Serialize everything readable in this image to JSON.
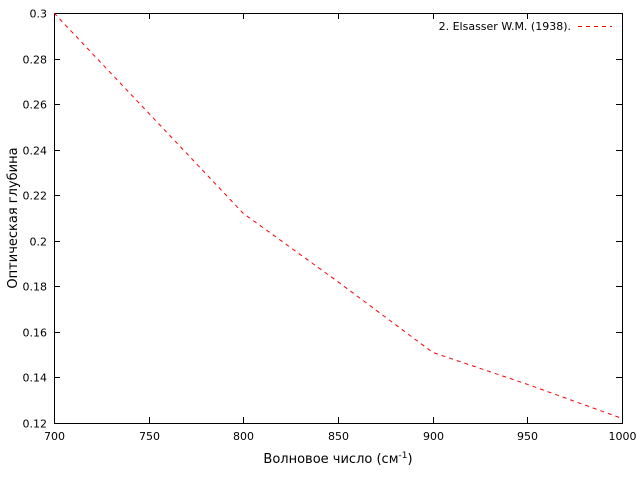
{
  "chart_data": {
    "type": "line",
    "xlabel": "Волновое число (см",
    "xlabel_sup": "-1",
    "xlabel_end": ")",
    "ylabel": "Оптическая глубина",
    "xlim": [
      700,
      1000
    ],
    "ylim": [
      0.12,
      0.3
    ],
    "xticks": [
      700,
      750,
      800,
      850,
      900,
      950,
      1000
    ],
    "yticks": [
      0.12,
      0.14,
      0.16,
      0.18,
      0.2,
      0.22,
      0.24,
      0.26,
      0.28,
      0.3
    ],
    "grid": false,
    "legend_position": "top-right",
    "series": [
      {
        "name": "2. Elsasser W.M. (1938).",
        "color": "#ff0000",
        "dash": "dashed",
        "x": [
          700,
          750,
          800,
          850,
          900,
          950,
          1000
        ],
        "y": [
          0.3,
          0.256,
          0.212,
          0.182,
          0.151,
          0.137,
          0.122
        ]
      }
    ]
  }
}
